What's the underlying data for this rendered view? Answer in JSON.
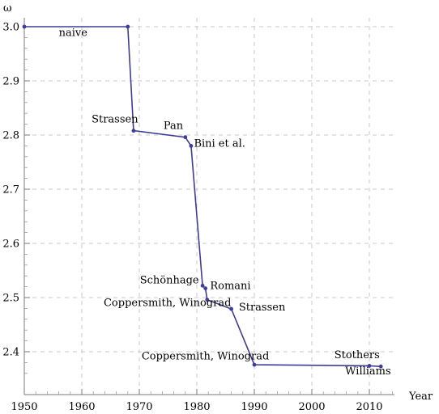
{
  "chart_data": {
    "type": "line",
    "title": "",
    "xlabel": "Year",
    "ylabel": "ω",
    "xlim": [
      1950,
      2015
    ],
    "ylim": [
      2.35,
      3.02
    ],
    "xticks": [
      1950,
      1960,
      1970,
      1980,
      1990,
      2000,
      2010
    ],
    "yticks": [
      2.4,
      2.5,
      2.6,
      2.7,
      2.8,
      2.9,
      3.0
    ],
    "xtick_labels": [
      "1950",
      "1960",
      "1970",
      "1980",
      "1990",
      "2000",
      "2010"
    ],
    "ytick_labels": [
      "2.4",
      "2.5",
      "2.6",
      "2.7",
      "2.8",
      "2.9",
      "3.0"
    ],
    "grid": true,
    "line_color": "#3d3d99",
    "series": [
      {
        "x": [
          1950,
          1968,
          1969,
          1978,
          1979,
          1981,
          1981.5,
          1981.8,
          1986,
          1990,
          2010,
          2012
        ],
        "y": [
          3.0,
          3.0,
          2.808,
          2.796,
          2.78,
          2.522,
          2.517,
          2.496,
          2.479,
          2.376,
          2.374,
          2.3729
        ]
      }
    ],
    "annotations": [
      {
        "text": "naive",
        "x": 1956,
        "y": 2.983
      },
      {
        "text": "Strassen",
        "x": 1961.7,
        "y": 2.823
      },
      {
        "text": "Pan",
        "x": 1974.2,
        "y": 2.811
      },
      {
        "text": "Bini et al.",
        "x": 1979.5,
        "y": 2.778
      },
      {
        "text": "Schönhage",
        "x": 1970.1,
        "y": 2.526
      },
      {
        "text": "Romani",
        "x": 1982.3,
        "y": 2.516
      },
      {
        "text": "Coppersmith, Winograd",
        "x": 1963.8,
        "y": 2.484
      },
      {
        "text": "Strassen",
        "x": 1987.3,
        "y": 2.476
      },
      {
        "text": "Coppersmith, Winograd",
        "x": 1970.4,
        "y": 2.386
      },
      {
        "text": "Stothers",
        "x": 2003.9,
        "y": 2.388
      },
      {
        "text": "Williams",
        "x": 2005.8,
        "y": 2.358
      }
    ]
  }
}
